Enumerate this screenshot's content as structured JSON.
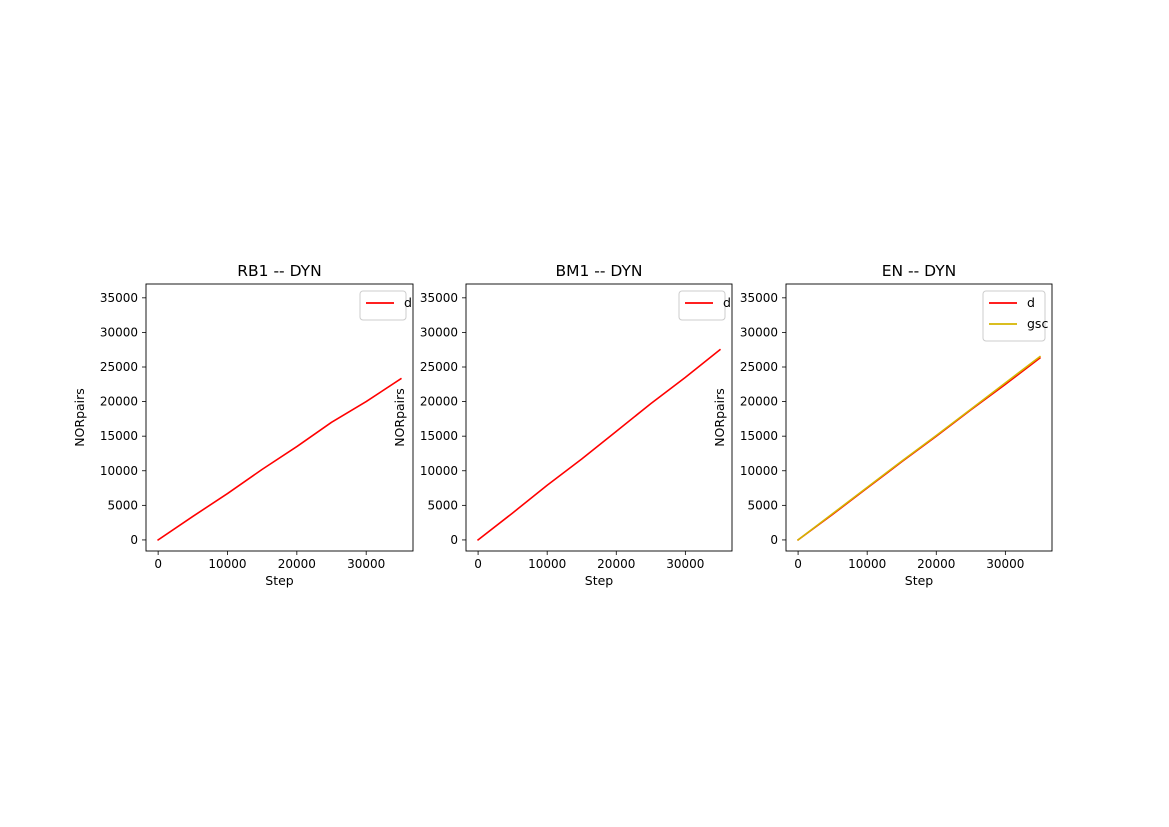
{
  "chart_data": [
    {
      "type": "line",
      "title": "RB1 -- DYN",
      "xlabel": "Step",
      "ylabel": "NORpairs",
      "xlim": [
        -1750,
        36750
      ],
      "ylim": [
        -1600,
        37000
      ],
      "xticks": [
        0,
        10000,
        20000,
        30000
      ],
      "yticks": [
        0,
        5000,
        10000,
        15000,
        20000,
        25000,
        30000,
        35000
      ],
      "legend": "top-right",
      "series": [
        {
          "name": "d",
          "color": "#ff0000",
          "x": [
            0,
            5000,
            10000,
            15000,
            20000,
            25000,
            30000,
            35000
          ],
          "y": [
            0,
            3400,
            6700,
            10200,
            13500,
            17000,
            20000,
            23300
          ]
        }
      ]
    },
    {
      "type": "line",
      "title": "BM1 -- DYN",
      "xlabel": "Step",
      "ylabel": "NORpairs",
      "xlim": [
        -1750,
        36750
      ],
      "ylim": [
        -1600,
        37000
      ],
      "xticks": [
        0,
        10000,
        20000,
        30000
      ],
      "yticks": [
        0,
        5000,
        10000,
        15000,
        20000,
        25000,
        30000,
        35000
      ],
      "legend": "top-right",
      "series": [
        {
          "name": "d",
          "color": "#ff0000",
          "x": [
            0,
            5000,
            10000,
            15000,
            20000,
            25000,
            30000,
            35000
          ],
          "y": [
            0,
            3900,
            7900,
            11700,
            15700,
            19700,
            23500,
            27500
          ]
        }
      ]
    },
    {
      "type": "line",
      "title": "EN -- DYN",
      "xlabel": "Step",
      "ylabel": "NORpairs",
      "xlim": [
        -1750,
        36750
      ],
      "ylim": [
        -1600,
        37000
      ],
      "xticks": [
        0,
        10000,
        20000,
        30000
      ],
      "yticks": [
        0,
        5000,
        10000,
        15000,
        20000,
        25000,
        30000,
        35000
      ],
      "legend": "top-right",
      "series": [
        {
          "name": "d",
          "color": "#ff0000",
          "x": [
            0,
            5000,
            10000,
            15000,
            20000,
            25000,
            30000,
            35000
          ],
          "y": [
            0,
            3700,
            7500,
            11300,
            15000,
            18800,
            22500,
            26300
          ]
        },
        {
          "name": "gsc",
          "color": "#d4b400",
          "x": [
            0,
            5000,
            10000,
            15000,
            20000,
            25000,
            30000,
            35000
          ],
          "y": [
            0,
            3800,
            7600,
            11400,
            15100,
            18900,
            22700,
            26500
          ]
        }
      ]
    }
  ]
}
